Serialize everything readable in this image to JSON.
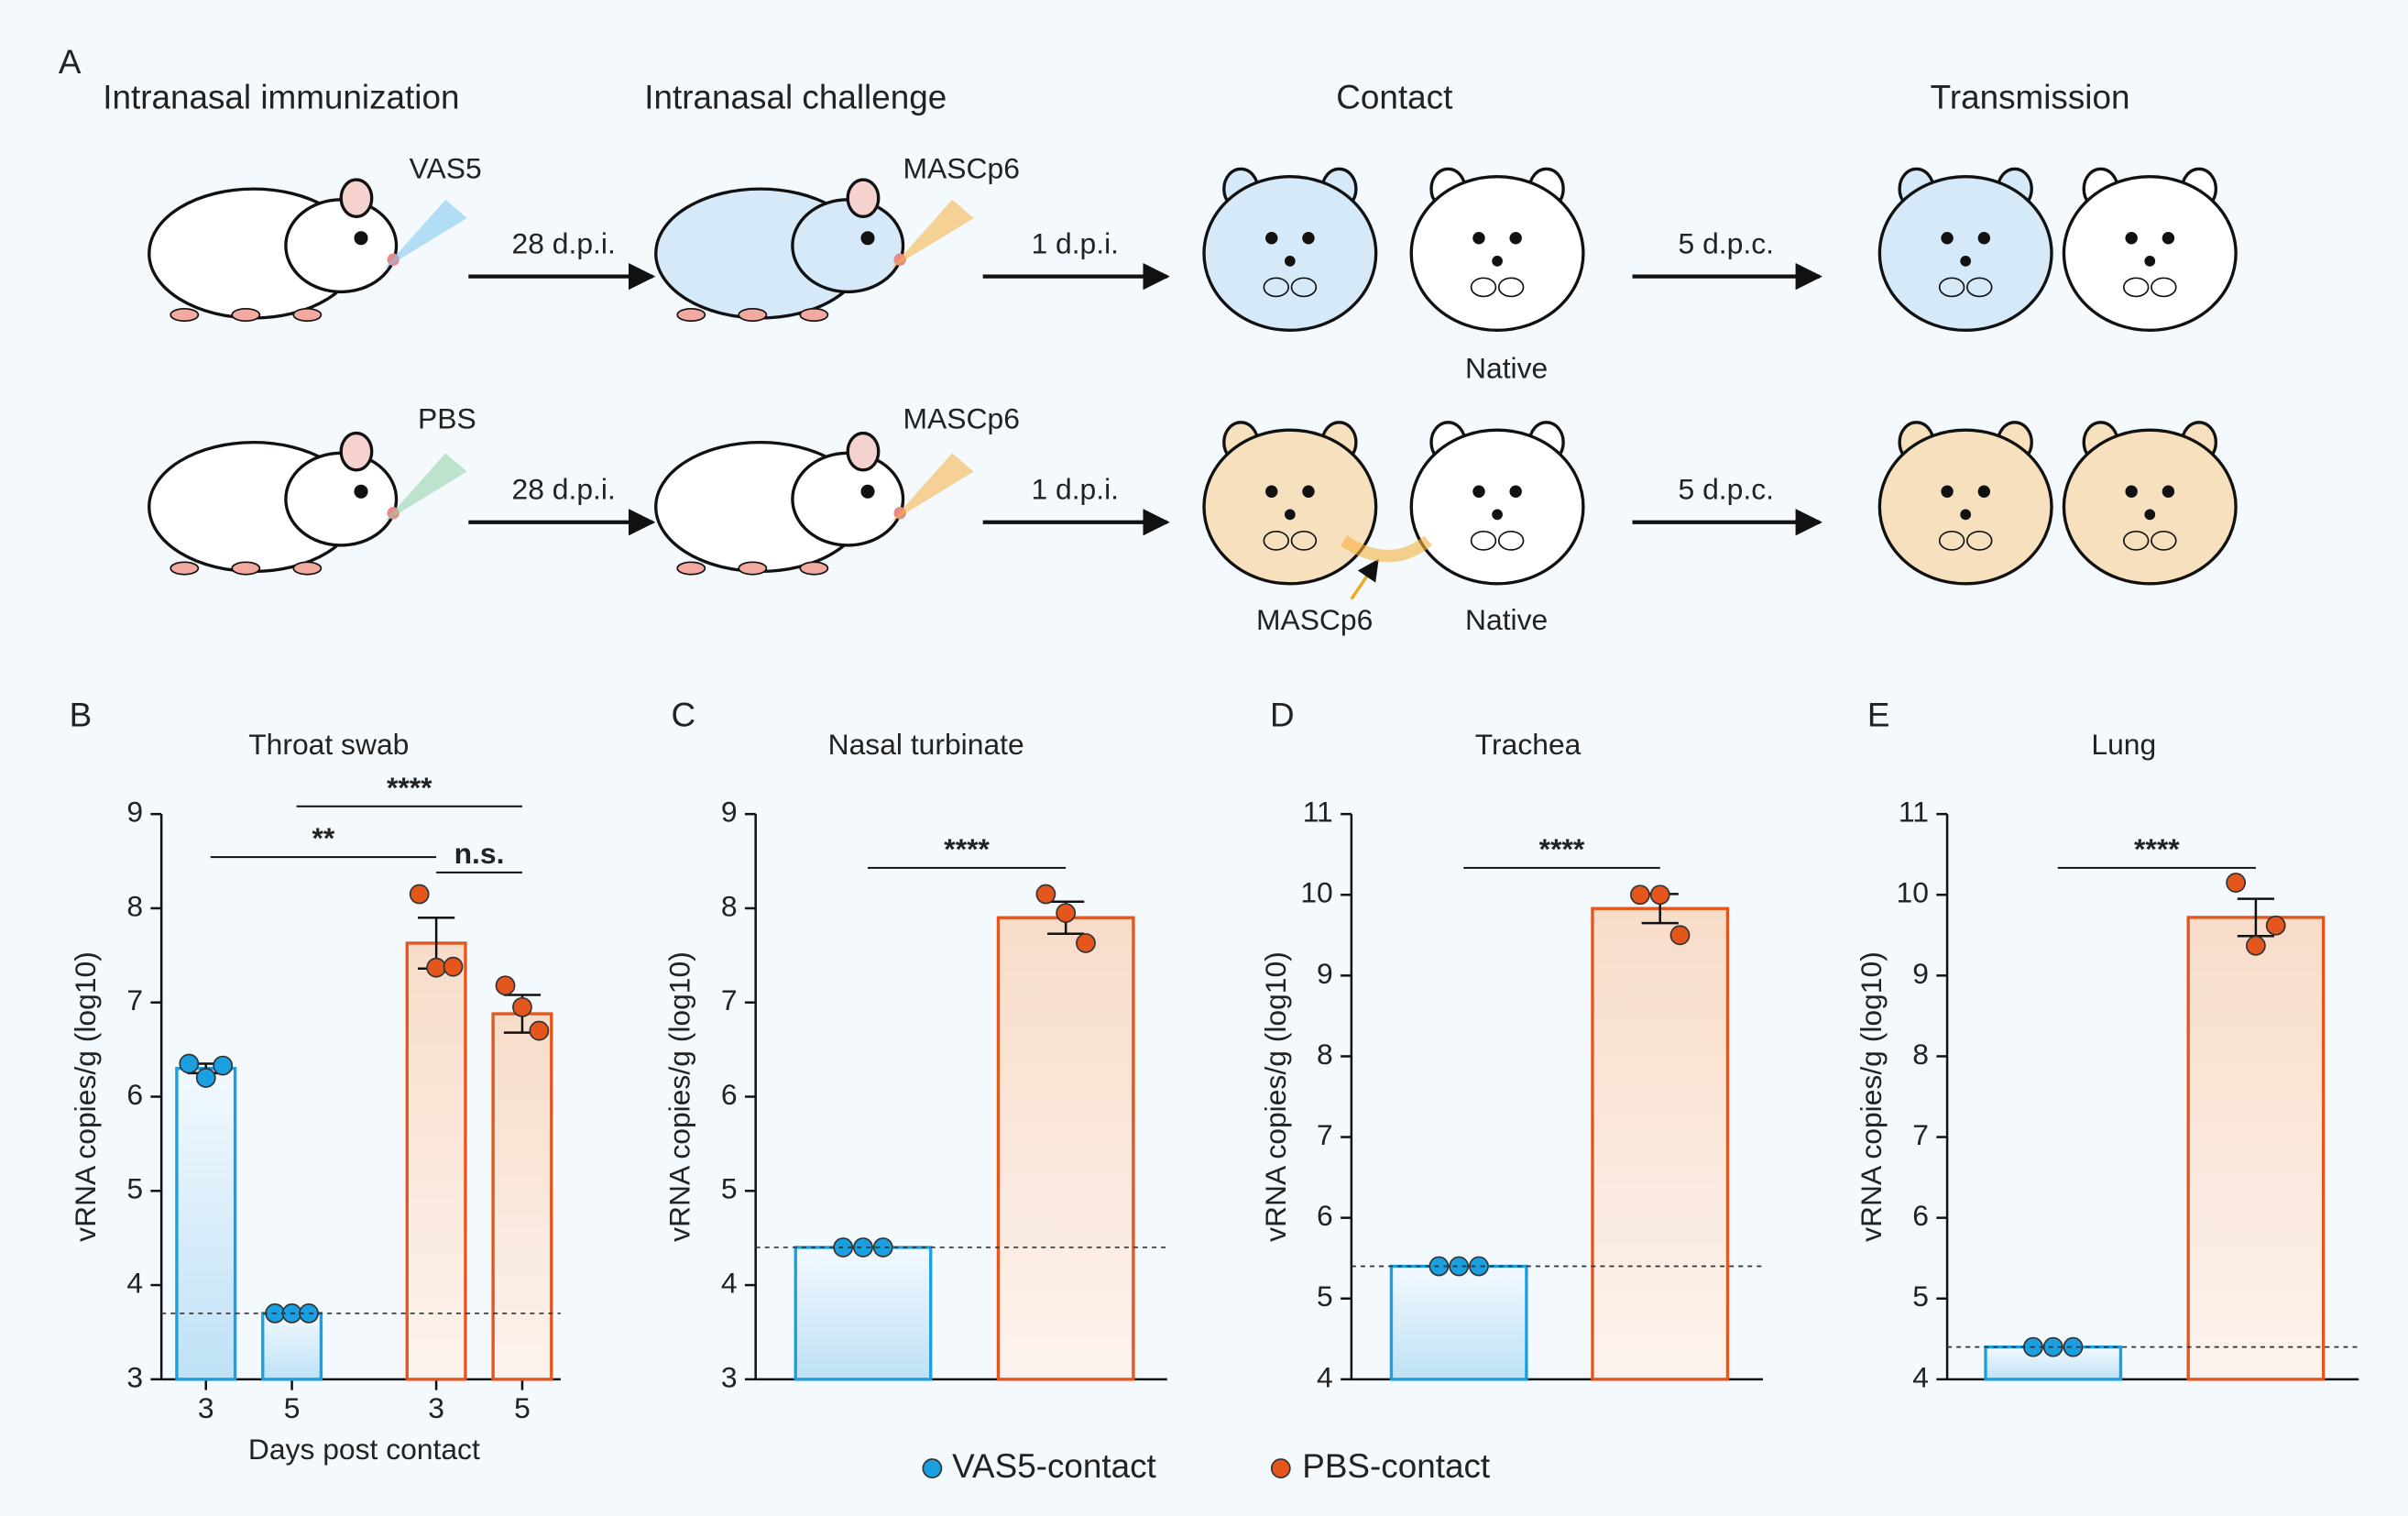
{
  "panel_a": {
    "label": "A",
    "stages": [
      "Intranasal immunization",
      "Intranasal challenge",
      "Contact",
      "Transmission"
    ],
    "rows": [
      {
        "dose": "VAS5",
        "challenge": "MASCp6",
        "arrows": [
          "28 d.p.i.",
          "1 d.p.i.",
          "5 d.p.c."
        ],
        "native": "Native"
      },
      {
        "dose": "PBS",
        "challenge": "MASCp6",
        "arrows": [
          "28 d.p.i.",
          "1 d.p.i.",
          "5 d.p.c."
        ],
        "contact_virus": "MASCp6",
        "native": "Native"
      }
    ]
  },
  "legend": [
    {
      "name": "VAS5-contact",
      "color": "#1a9fe0"
    },
    {
      "name": "PBS-contact",
      "color": "#e4561c"
    }
  ],
  "chart_data": [
    {
      "type": "bar",
      "panel": "B",
      "title": "Throat swab",
      "ylabel": "vRNA copies/g (log10)",
      "xlabel": "Days post contact",
      "categories": [
        "3",
        "5",
        "3",
        "5"
      ],
      "ylim": [
        3,
        9
      ],
      "yticks": [
        3,
        4,
        5,
        6,
        7,
        8,
        9
      ],
      "detection_limit": 3.7,
      "series": [
        {
          "color": "#1a9fe0",
          "values": [
            6.3,
            3.7,
            null,
            null
          ],
          "errors": [
            0.05,
            null,
            null,
            null
          ],
          "points": [
            [
              6.35,
              6.2,
              6.33
            ],
            [
              3.7,
              3.7,
              3.7
            ],
            null,
            null
          ]
        },
        {
          "color": "#e4561c",
          "values": [
            null,
            null,
            7.63,
            6.88
          ],
          "errors": [
            null,
            null,
            0.27,
            0.2
          ],
          "points": [
            null,
            null,
            [
              8.15,
              7.37,
              7.38
            ],
            [
              7.18,
              6.95,
              6.7
            ]
          ]
        }
      ],
      "significance": [
        {
          "label": "****",
          "from": 1,
          "to": 3
        },
        {
          "label": "**",
          "from": 0,
          "to": 2
        },
        {
          "label": "n.s.",
          "from": 2,
          "to": 3
        }
      ]
    },
    {
      "type": "bar",
      "panel": "C",
      "title": "Nasal turbinate",
      "ylabel": "vRNA copies/g (log10)",
      "categories": [
        null,
        null
      ],
      "ylim": [
        3,
        9
      ],
      "yticks": [
        3,
        4,
        5,
        6,
        7,
        8,
        9
      ],
      "detection_limit": 4.4,
      "series": [
        {
          "color": "#1a9fe0",
          "values": [
            4.4,
            null
          ],
          "errors": [
            null,
            null
          ],
          "points": [
            [
              4.4,
              4.4,
              4.4
            ],
            null
          ]
        },
        {
          "color": "#e4561c",
          "values": [
            null,
            7.9
          ],
          "errors": [
            null,
            0.17
          ],
          "points": [
            null,
            [
              8.15,
              7.95,
              7.63
            ]
          ]
        }
      ],
      "significance": [
        {
          "label": "****",
          "from": 0,
          "to": 1
        }
      ]
    },
    {
      "type": "bar",
      "panel": "D",
      "title": "Trachea",
      "ylabel": "vRNA copies/g (log10)",
      "categories": [
        null,
        null
      ],
      "ylim": [
        4,
        11
      ],
      "yticks": [
        4,
        5,
        6,
        7,
        8,
        9,
        10,
        11
      ],
      "detection_limit": 5.4,
      "series": [
        {
          "color": "#1a9fe0",
          "values": [
            5.4,
            null
          ],
          "errors": [
            null,
            null
          ],
          "points": [
            [
              5.4,
              5.4,
              5.4
            ],
            null
          ]
        },
        {
          "color": "#e4561c",
          "values": [
            null,
            9.83
          ],
          "errors": [
            null,
            0.18
          ],
          "points": [
            null,
            [
              10.0,
              10.0,
              9.5
            ]
          ]
        }
      ],
      "significance": [
        {
          "label": "****",
          "from": 0,
          "to": 1
        }
      ]
    },
    {
      "type": "bar",
      "panel": "E",
      "title": "Lung",
      "ylabel": "vRNA copies/g (log10)",
      "categories": [
        null,
        null
      ],
      "ylim": [
        4,
        11
      ],
      "yticks": [
        4,
        5,
        6,
        7,
        8,
        9,
        10,
        11
      ],
      "detection_limit": 4.4,
      "series": [
        {
          "color": "#1a9fe0",
          "values": [
            4.4,
            null
          ],
          "errors": [
            null,
            null
          ],
          "points": [
            [
              4.4,
              4.4,
              4.4
            ],
            null
          ]
        },
        {
          "color": "#e4561c",
          "values": [
            null,
            9.72
          ],
          "errors": [
            null,
            0.23
          ],
          "points": [
            null,
            [
              10.15,
              9.37,
              9.62
            ]
          ]
        }
      ],
      "significance": [
        {
          "label": "****",
          "from": 0,
          "to": 1
        }
      ]
    }
  ]
}
